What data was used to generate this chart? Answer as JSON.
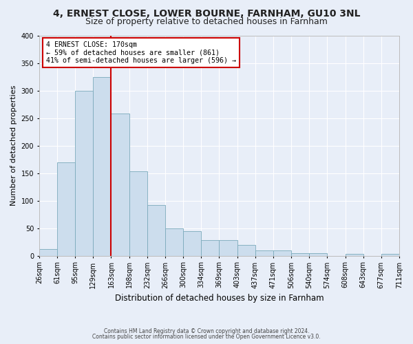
{
  "title1": "4, ERNEST CLOSE, LOWER BOURNE, FARNHAM, GU10 3NL",
  "title2": "Size of property relative to detached houses in Farnham",
  "xlabel": "Distribution of detached houses by size in Farnham",
  "ylabel": "Number of detached properties",
  "footnote1": "Contains HM Land Registry data © Crown copyright and database right 2024.",
  "footnote2": "Contains public sector information licensed under the Open Government Licence v3.0.",
  "bin_labels": [
    "26sqm",
    "61sqm",
    "95sqm",
    "129sqm",
    "163sqm",
    "198sqm",
    "232sqm",
    "266sqm",
    "300sqm",
    "334sqm",
    "369sqm",
    "403sqm",
    "437sqm",
    "471sqm",
    "506sqm",
    "540sqm",
    "574sqm",
    "608sqm",
    "643sqm",
    "677sqm",
    "711sqm"
  ],
  "bar_values": [
    12,
    170,
    300,
    325,
    258,
    153,
    92,
    50,
    44,
    28,
    28,
    20,
    10,
    10,
    5,
    5,
    0,
    3,
    0,
    3
  ],
  "bar_color": "#ccdded",
  "bar_edge_color": "#7aaabb",
  "vline_index": 4.0,
  "vline_color": "#cc0000",
  "annotation_line1": "4 ERNEST CLOSE: 170sqm",
  "annotation_line2": "← 59% of detached houses are smaller (861)",
  "annotation_line3": "41% of semi-detached houses are larger (596) →",
  "annotation_box_color": "#ffffff",
  "annotation_box_edge": "#cc0000",
  "ylim": [
    0,
    400
  ],
  "yticks": [
    0,
    50,
    100,
    150,
    200,
    250,
    300,
    350,
    400
  ],
  "bg_color": "#e8eef8",
  "plot_bg_color": "#e8eef8",
  "grid_color": "#ffffff",
  "title1_fontsize": 10,
  "title2_fontsize": 9
}
